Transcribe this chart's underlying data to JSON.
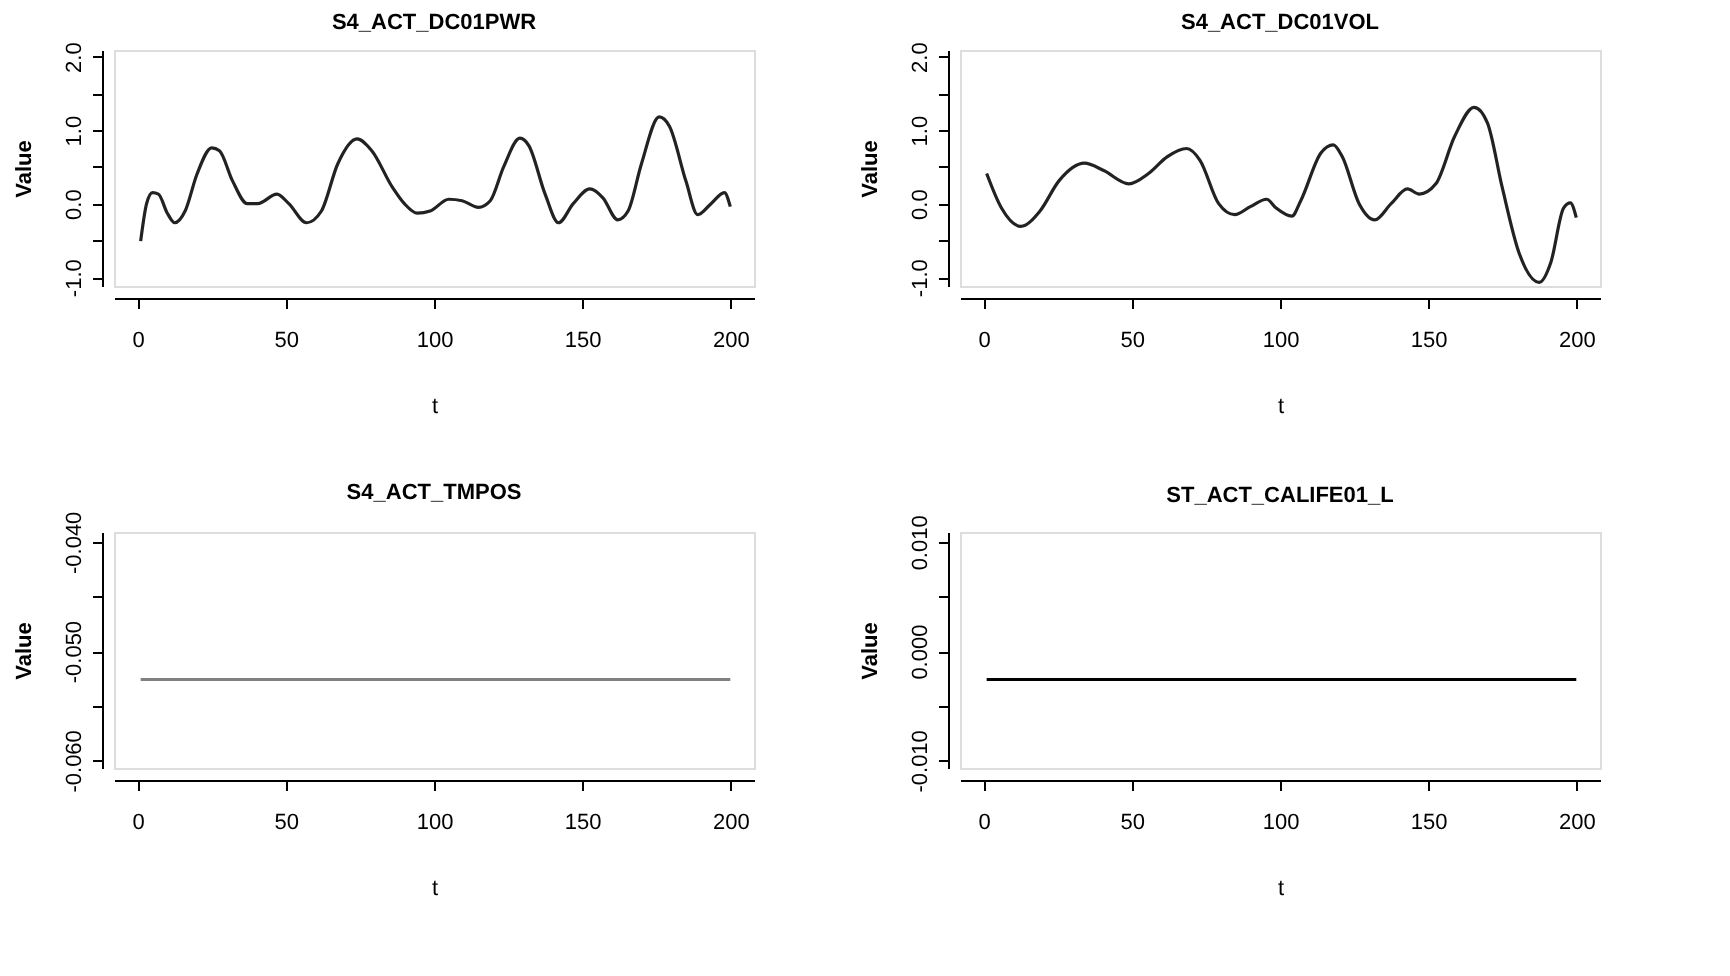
{
  "chart_data": [
    {
      "type": "line",
      "title": "S4_ACT_DC01PWR",
      "xlabel": "t",
      "ylabel": "Value",
      "xlim": [
        -8,
        208
      ],
      "ylim": [
        -1.12,
        2.09
      ],
      "xticks": [
        0,
        50,
        100,
        150,
        200
      ],
      "yticks": [
        {
          "value": -1.0,
          "label": "-1.0"
        },
        {
          "value": -0.5,
          "label": null
        },
        {
          "value": 0,
          "label": "0.0"
        },
        {
          "value": 0.5,
          "label": null
        },
        {
          "value": 1.0,
          "label": "1.0"
        },
        {
          "value": 1.5,
          "label": null
        },
        {
          "value": 2.0,
          "label": "2.0"
        }
      ],
      "grid": false,
      "series": [
        {
          "color": "#222222",
          "x": [
            1,
            3,
            5,
            7,
            10,
            12.5,
            16,
            20,
            25,
            27.6,
            32,
            37,
            40.5,
            47,
            51,
            57,
            62,
            67.5,
            74,
            79,
            86,
            90,
            94.4,
            98.7,
            105,
            109.5,
            115,
            119,
            123.5,
            129,
            132,
            137.5,
            142,
            147,
            152.6,
            157,
            162,
            165.5,
            170,
            176,
            179.5,
            185,
            189,
            193.5,
            198,
            200
          ],
          "values": [
            -0.51,
            0,
            0.15,
            0.13,
            -0.13,
            -0.26,
            -0.1,
            0.4,
            0.76,
            0.72,
            0.31,
            0,
            0,
            0.13,
            0,
            -0.26,
            -0.1,
            0.54,
            0.88,
            0.72,
            0.22,
            0,
            -0.13,
            -0.1,
            0.06,
            0.04,
            -0.05,
            0.04,
            0.5,
            0.89,
            0.79,
            0.13,
            -0.26,
            0,
            0.2,
            0.08,
            -0.22,
            -0.1,
            0.54,
            1.18,
            1.05,
            0.31,
            -0.15,
            0,
            0.15,
            -0.04
          ]
        }
      ]
    },
    {
      "type": "line",
      "title": "S4_ACT_DC01VOL",
      "xlabel": "t",
      "ylabel": "Value",
      "xlim": [
        -8,
        208
      ],
      "ylim": [
        -1.12,
        2.09
      ],
      "xticks": [
        0,
        50,
        100,
        150,
        200
      ],
      "yticks": [
        {
          "value": -1.0,
          "label": "-1.0"
        },
        {
          "value": -0.5,
          "label": null
        },
        {
          "value": 0,
          "label": "0.0"
        },
        {
          "value": 0.5,
          "label": null
        },
        {
          "value": 1.0,
          "label": "1.0"
        },
        {
          "value": 1.5,
          "label": null
        },
        {
          "value": 2.0,
          "label": "2.0"
        }
      ],
      "grid": false,
      "series": [
        {
          "color": "#222222",
          "x": [
            1,
            6,
            12.5,
            19,
            25.4,
            34,
            40.5,
            49,
            55.6,
            62,
            68.5,
            73,
            79.3,
            84.7,
            90,
            95.5,
            98.7,
            104,
            107,
            113.8,
            118,
            121,
            126.7,
            132,
            137.5,
            143,
            147,
            152.6,
            159,
            165.5,
            170,
            175,
            180.6,
            187.5,
            191.4,
            195.7,
            198,
            200
          ],
          "values": [
            0.41,
            -0.06,
            -0.31,
            -0.1,
            0.31,
            0.55,
            0.45,
            0.27,
            0.41,
            0.64,
            0.75,
            0.59,
            0,
            -0.15,
            -0.04,
            0.06,
            -0.06,
            -0.17,
            0.04,
            0.69,
            0.8,
            0.64,
            0,
            -0.22,
            0,
            0.2,
            0.13,
            0.27,
            0.92,
            1.31,
            1.1,
            0.22,
            -0.66,
            -1.07,
            -0.8,
            -0.06,
            0.01,
            -0.19
          ]
        }
      ]
    },
    {
      "type": "line",
      "title": "S4_ACT_TMPOS",
      "xlabel": "t",
      "ylabel": "Value",
      "xlim": [
        -8,
        208
      ],
      "ylim": [
        -0.0607,
        -0.0391
      ],
      "xticks": [
        0,
        50,
        100,
        150,
        200
      ],
      "yticks": [
        {
          "value": -0.06,
          "label": "-0.060"
        },
        {
          "value": -0.055,
          "label": null
        },
        {
          "value": -0.05,
          "label": "-0.050"
        },
        {
          "value": -0.045,
          "label": null
        },
        {
          "value": -0.04,
          "label": "-0.040"
        }
      ],
      "grid": false,
      "series": [
        {
          "color": "#808080",
          "x": [
            1,
            200
          ],
          "values": [
            -0.0526,
            -0.0526
          ]
        }
      ]
    },
    {
      "type": "line",
      "title": "ST_ACT_CALIFE01_L",
      "xlabel": "t",
      "ylabel": "Value",
      "xlim": [
        -8,
        208
      ],
      "ylim": [
        -0.0107,
        0.0109
      ],
      "xticks": [
        0,
        50,
        100,
        150,
        200
      ],
      "yticks": [
        {
          "value": -0.01,
          "label": "-0.010"
        },
        {
          "value": -0.005,
          "label": null
        },
        {
          "value": 0,
          "label": "0.000"
        },
        {
          "value": 0.005,
          "label": null
        },
        {
          "value": 0.01,
          "label": "0.010"
        }
      ],
      "grid": false,
      "series": [
        {
          "color": "#000000",
          "x": [
            1,
            200
          ],
          "values": [
            -0.0026,
            -0.0026
          ]
        }
      ]
    }
  ]
}
